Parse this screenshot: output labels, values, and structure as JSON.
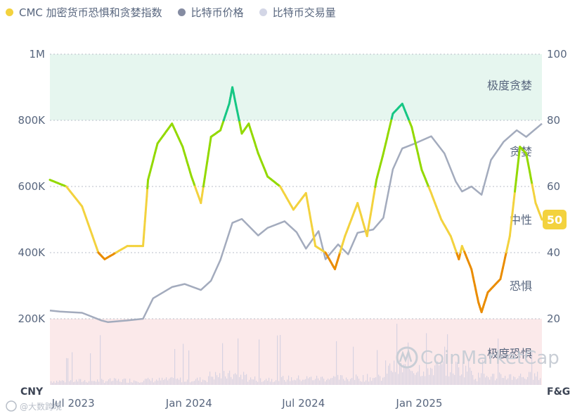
{
  "legend": [
    {
      "label": "CMC 加密货币恐惧和贪婪指数",
      "color": "#f3d23e"
    },
    {
      "label": "比特币价格",
      "color": "#858ca2"
    },
    {
      "label": "比特币交易量",
      "color": "#d3d6e6"
    }
  ],
  "watermarks": {
    "brand": "CoinMarketCap",
    "corner": "@大数跨境"
  },
  "chart_data": {
    "type": "line",
    "left_axis": {
      "unit": "CNY",
      "ticks": [
        "200K",
        "400K",
        "600K",
        "800K",
        "1M"
      ],
      "range": [
        0,
        1000000
      ]
    },
    "right_axis": {
      "unit": "F&G",
      "ticks": [
        "20",
        "40",
        "60",
        "80",
        "100"
      ],
      "range": [
        0,
        100
      ]
    },
    "x_ticks": [
      "Jul 2023",
      "Jan 2024",
      "Jul 2024",
      "Jan 2025"
    ],
    "zones": [
      {
        "label": "极度贪婪",
        "from": 80,
        "to": 100,
        "color": "#e6f6ef"
      },
      {
        "label": "贪婪",
        "from": 60,
        "to": 80
      },
      {
        "label": "中性",
        "from": 40,
        "to": 60
      },
      {
        "label": "恐惧",
        "from": 20,
        "to": 40
      },
      {
        "label": "极度恐惧",
        "from": 0,
        "to": 20,
        "color": "#fbe9ea"
      }
    ],
    "current_value": "50",
    "current_color": "#f3d23e",
    "band_colors": {
      "extreme_greed": "#16c784",
      "greed": "#93d900",
      "neutral": "#f3d23e",
      "fear": "#ea8c00",
      "extreme_fear": "#ea3943"
    },
    "fear_greed_index": {
      "dates": [
        "2023-05-25",
        "2023-06-20",
        "2023-07-15",
        "2023-08-10",
        "2023-08-20",
        "2023-09-25",
        "2023-10-20",
        "2023-10-28",
        "2023-11-12",
        "2023-12-05",
        "2023-12-22",
        "2024-01-05",
        "2024-01-20",
        "2024-02-05",
        "2024-02-20",
        "2024-03-05",
        "2024-03-10",
        "2024-03-25",
        "2024-04-05",
        "2024-04-20",
        "2024-05-05",
        "2024-05-25",
        "2024-06-15",
        "2024-07-05",
        "2024-07-20",
        "2024-08-05",
        "2024-08-20",
        "2024-09-05",
        "2024-09-25",
        "2024-10-10",
        "2024-10-25",
        "2024-11-05",
        "2024-11-20",
        "2024-12-05",
        "2024-12-20",
        "2025-01-05",
        "2025-01-20",
        "2025-02-05",
        "2025-02-20",
        "2025-03-05",
        "2025-03-10",
        "2025-03-25",
        "2025-04-05",
        "2025-04-10",
        "2025-04-20",
        "2025-05-10",
        "2025-05-25",
        "2025-06-10",
        "2025-06-20",
        "2025-07-05",
        "2025-07-15"
      ],
      "values": [
        62,
        60,
        54,
        40,
        38,
        42,
        42,
        62,
        73,
        79,
        72,
        63,
        55,
        75,
        77,
        85,
        90,
        76,
        79,
        70,
        63,
        60,
        53,
        58,
        42,
        40,
        35,
        45,
        55,
        45,
        62,
        70,
        82,
        85,
        78,
        65,
        58,
        50,
        45,
        38,
        42,
        35,
        25,
        22,
        28,
        32,
        45,
        72,
        70,
        55,
        50
      ]
    },
    "price": {
      "dates": [
        "2023-05-25",
        "2023-06-10",
        "2023-07-15",
        "2023-08-15",
        "2023-08-25",
        "2023-09-25",
        "2023-10-20",
        "2023-11-05",
        "2023-12-05",
        "2023-12-25",
        "2024-01-20",
        "2024-02-05",
        "2024-02-20",
        "2024-03-10",
        "2024-03-25",
        "2024-04-20",
        "2024-05-05",
        "2024-06-01",
        "2024-06-20",
        "2024-07-05",
        "2024-07-25",
        "2024-08-05",
        "2024-08-25",
        "2024-09-10",
        "2024-09-25",
        "2024-10-20",
        "2024-11-05",
        "2024-11-20",
        "2024-12-05",
        "2024-12-25",
        "2025-01-20",
        "2025-02-10",
        "2025-02-28",
        "2025-03-10",
        "2025-03-25",
        "2025-04-10",
        "2025-04-25",
        "2025-05-15",
        "2025-06-05",
        "2025-06-20",
        "2025-07-15"
      ],
      "values": [
        225000,
        222000,
        218000,
        195000,
        190000,
        195000,
        200000,
        262000,
        296000,
        305000,
        287000,
        315000,
        378000,
        490000,
        502000,
        452000,
        475000,
        495000,
        462000,
        412000,
        465000,
        380000,
        425000,
        395000,
        460000,
        470000,
        505000,
        652000,
        715000,
        730000,
        752000,
        700000,
        615000,
        585000,
        600000,
        575000,
        680000,
        735000,
        770000,
        750000,
        790000
      ]
    },
    "volume_note": "比特币交易量 shown as faint bars at bottom"
  }
}
